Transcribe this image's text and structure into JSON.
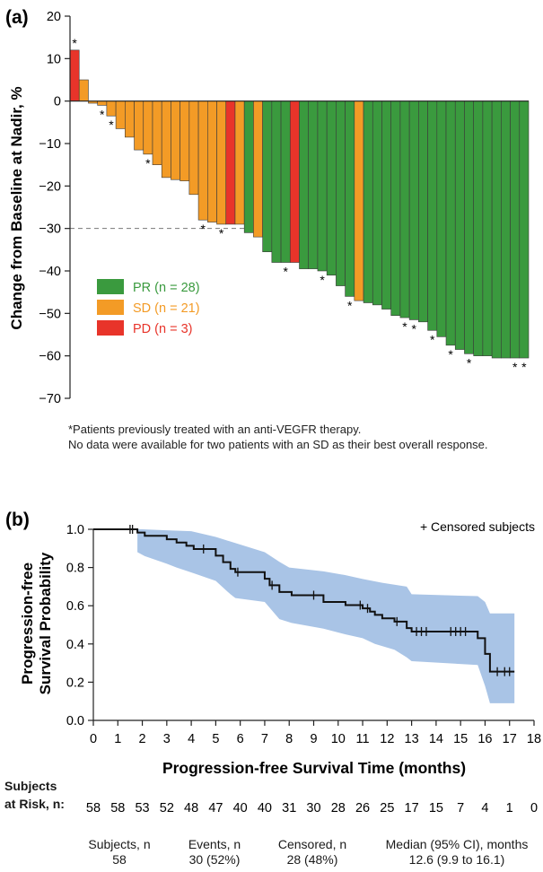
{
  "colors": {
    "PR": "#3a9a3e",
    "SD": "#f39b26",
    "PD": "#e8342a",
    "km_line": "#111111",
    "ci_band": "#a9c4e6",
    "reference_line": "#777777"
  },
  "chart_data": [
    {
      "type": "bar",
      "panel_label": "(a)",
      "ylabel": "Change from Baseline at Nadir, %",
      "ylim": [
        -70,
        20
      ],
      "yticks": [
        "20",
        "10",
        "0",
        "−10",
        "−20",
        "−30",
        "−40",
        "−50",
        "−60",
        "−70"
      ],
      "yticks_values": [
        20,
        10,
        0,
        -10,
        -20,
        -30,
        -40,
        -50,
        -60,
        -70
      ],
      "reference_line": -30,
      "legend_placement": "lower-left",
      "legend": [
        {
          "key": "PR",
          "label": "PR (n = 28)"
        },
        {
          "key": "SD",
          "label": "SD (n = 21)"
        },
        {
          "key": "PD",
          "label": "PD (n = 3)"
        }
      ],
      "series": [
        {
          "name": "PR",
          "values": []
        },
        {
          "name": "SD",
          "values": []
        },
        {
          "name": "PD",
          "values": []
        }
      ],
      "bars": [
        {
          "value": 12,
          "status": "PD",
          "marker": "*"
        },
        {
          "value": 5,
          "status": "SD",
          "marker": ""
        },
        {
          "value": -0.5,
          "status": "SD",
          "marker": ""
        },
        {
          "value": -1,
          "status": "SD",
          "marker": "*"
        },
        {
          "value": -3.5,
          "status": "SD",
          "marker": "*"
        },
        {
          "value": -6.5,
          "status": "SD",
          "marker": ""
        },
        {
          "value": -8.5,
          "status": "SD",
          "marker": ""
        },
        {
          "value": -11.5,
          "status": "SD",
          "marker": ""
        },
        {
          "value": -12.5,
          "status": "SD",
          "marker": "*"
        },
        {
          "value": -15,
          "status": "SD",
          "marker": ""
        },
        {
          "value": -18,
          "status": "SD",
          "marker": ""
        },
        {
          "value": -18.5,
          "status": "SD",
          "marker": ""
        },
        {
          "value": -18.8,
          "status": "SD",
          "marker": ""
        },
        {
          "value": -22,
          "status": "SD",
          "marker": ""
        },
        {
          "value": -28,
          "status": "SD",
          "marker": "*"
        },
        {
          "value": -28.5,
          "status": "SD",
          "marker": ""
        },
        {
          "value": -29,
          "status": "SD",
          "marker": "*"
        },
        {
          "value": -29,
          "status": "PD",
          "marker": ""
        },
        {
          "value": -29,
          "status": "SD",
          "marker": ""
        },
        {
          "value": -31,
          "status": "PR",
          "marker": ""
        },
        {
          "value": -32,
          "status": "SD",
          "marker": ""
        },
        {
          "value": -35.5,
          "status": "PR",
          "marker": ""
        },
        {
          "value": -38,
          "status": "PR",
          "marker": ""
        },
        {
          "value": -38,
          "status": "PR",
          "marker": "*"
        },
        {
          "value": -38,
          "status": "PD",
          "marker": ""
        },
        {
          "value": -39.5,
          "status": "PR",
          "marker": ""
        },
        {
          "value": -39.5,
          "status": "PR",
          "marker": ""
        },
        {
          "value": -40,
          "status": "PR",
          "marker": "*"
        },
        {
          "value": -41,
          "status": "PR",
          "marker": ""
        },
        {
          "value": -43.5,
          "status": "PR",
          "marker": ""
        },
        {
          "value": -46,
          "status": "PR",
          "marker": "*"
        },
        {
          "value": -47,
          "status": "SD",
          "marker": ""
        },
        {
          "value": -47.5,
          "status": "PR",
          "marker": ""
        },
        {
          "value": -48,
          "status": "PR",
          "marker": ""
        },
        {
          "value": -49,
          "status": "PR",
          "marker": ""
        },
        {
          "value": -50.5,
          "status": "PR",
          "marker": ""
        },
        {
          "value": -51,
          "status": "PR",
          "marker": "*"
        },
        {
          "value": -51.5,
          "status": "PR",
          "marker": "*"
        },
        {
          "value": -52,
          "status": "PR",
          "marker": ""
        },
        {
          "value": -54,
          "status": "PR",
          "marker": "*"
        },
        {
          "value": -55.5,
          "status": "PR",
          "marker": ""
        },
        {
          "value": -57.5,
          "status": "PR",
          "marker": "*"
        },
        {
          "value": -58.5,
          "status": "PR",
          "marker": ""
        },
        {
          "value": -59.5,
          "status": "PR",
          "marker": "*"
        },
        {
          "value": -60,
          "status": "PR",
          "marker": ""
        },
        {
          "value": -60,
          "status": "PR",
          "marker": ""
        },
        {
          "value": -60.5,
          "status": "PR",
          "marker": ""
        },
        {
          "value": -60.5,
          "status": "PR",
          "marker": ""
        },
        {
          "value": -60.5,
          "status": "PR",
          "marker": "*"
        },
        {
          "value": -60.5,
          "status": "PR",
          "marker": "*"
        }
      ]
    },
    {
      "type": "line",
      "panel_label": "(b)",
      "ylabel_line1": "Progression-free",
      "ylabel_line2": "Survival Probability",
      "xlabel": "Progression-free Survival Time (months)",
      "xlim": [
        0,
        18
      ],
      "ylim": [
        0,
        1
      ],
      "xticks": [
        "0",
        "1",
        "2",
        "3",
        "4",
        "5",
        "6",
        "7",
        "8",
        "9",
        "10",
        "11",
        "12",
        "13",
        "14",
        "15",
        "16",
        "17",
        "18"
      ],
      "xticks_values": [
        0,
        1,
        2,
        3,
        4,
        5,
        6,
        7,
        8,
        9,
        10,
        11,
        12,
        13,
        14,
        15,
        16,
        17,
        18
      ],
      "yticks": [
        "0.0",
        "0.2",
        "0.4",
        "0.6",
        "0.8",
        "1.0"
      ],
      "yticks_values": [
        0,
        0.2,
        0.4,
        0.6,
        0.8,
        1.0
      ],
      "legend_text": "+ Censored subjects",
      "legend_placement": "top-right",
      "km_steps": [
        [
          0,
          1.0
        ],
        [
          1.8,
          1.0
        ],
        [
          1.8,
          0.983
        ],
        [
          2.1,
          0.983
        ],
        [
          2.1,
          0.966
        ],
        [
          3.0,
          0.966
        ],
        [
          3.0,
          0.948
        ],
        [
          3.4,
          0.948
        ],
        [
          3.4,
          0.931
        ],
        [
          3.8,
          0.931
        ],
        [
          3.8,
          0.914
        ],
        [
          4.1,
          0.914
        ],
        [
          4.1,
          0.897
        ],
        [
          5.0,
          0.897
        ],
        [
          5.0,
          0.862
        ],
        [
          5.3,
          0.862
        ],
        [
          5.3,
          0.828
        ],
        [
          5.6,
          0.828
        ],
        [
          5.6,
          0.793
        ],
        [
          5.8,
          0.793
        ],
        [
          5.8,
          0.776
        ],
        [
          7.0,
          0.776
        ],
        [
          7.0,
          0.741
        ],
        [
          7.2,
          0.741
        ],
        [
          7.2,
          0.707
        ],
        [
          7.6,
          0.707
        ],
        [
          7.6,
          0.672
        ],
        [
          8.1,
          0.672
        ],
        [
          8.1,
          0.655
        ],
        [
          9.4,
          0.655
        ],
        [
          9.4,
          0.62
        ],
        [
          10.3,
          0.62
        ],
        [
          10.3,
          0.603
        ],
        [
          11.0,
          0.603
        ],
        [
          11.0,
          0.586
        ],
        [
          11.3,
          0.586
        ],
        [
          11.3,
          0.569
        ],
        [
          11.5,
          0.569
        ],
        [
          11.5,
          0.552
        ],
        [
          11.8,
          0.552
        ],
        [
          11.8,
          0.534
        ],
        [
          12.3,
          0.534
        ],
        [
          12.3,
          0.517
        ],
        [
          12.8,
          0.517
        ],
        [
          12.8,
          0.483
        ],
        [
          13.0,
          0.483
        ],
        [
          13.0,
          0.465
        ],
        [
          15.7,
          0.465
        ],
        [
          15.7,
          0.43
        ],
        [
          16.0,
          0.43
        ],
        [
          16.0,
          0.348
        ],
        [
          16.2,
          0.348
        ],
        [
          16.2,
          0.255
        ],
        [
          17.2,
          0.255
        ]
      ],
      "ci_upper": [
        [
          0,
          1.0
        ],
        [
          1.8,
          1.0
        ],
        [
          2.0,
          1.0
        ],
        [
          3.0,
          0.995
        ],
        [
          4.0,
          0.99
        ],
        [
          5.0,
          0.96
        ],
        [
          6.0,
          0.92
        ],
        [
          7.0,
          0.88
        ],
        [
          7.6,
          0.83
        ],
        [
          8.0,
          0.8
        ],
        [
          9.4,
          0.78
        ],
        [
          10.3,
          0.76
        ],
        [
          11.0,
          0.74
        ],
        [
          11.8,
          0.72
        ],
        [
          12.8,
          0.7
        ],
        [
          13.0,
          0.66
        ],
        [
          15.7,
          0.65
        ],
        [
          16.0,
          0.62
        ],
        [
          16.2,
          0.56
        ],
        [
          17.2,
          0.56
        ]
      ],
      "ci_lower": [
        [
          0,
          1.0
        ],
        [
          1.8,
          1.0
        ],
        [
          1.8,
          0.88
        ],
        [
          2.1,
          0.86
        ],
        [
          3.0,
          0.82
        ],
        [
          3.4,
          0.8
        ],
        [
          4.1,
          0.77
        ],
        [
          5.0,
          0.73
        ],
        [
          5.6,
          0.66
        ],
        [
          5.8,
          0.64
        ],
        [
          7.0,
          0.62
        ],
        [
          7.6,
          0.53
        ],
        [
          8.1,
          0.51
        ],
        [
          9.4,
          0.48
        ],
        [
          10.3,
          0.45
        ],
        [
          11.0,
          0.43
        ],
        [
          11.5,
          0.4
        ],
        [
          12.3,
          0.37
        ],
        [
          12.8,
          0.33
        ],
        [
          13.0,
          0.31
        ],
        [
          15.7,
          0.29
        ],
        [
          16.0,
          0.18
        ],
        [
          16.2,
          0.09
        ],
        [
          17.2,
          0.09
        ]
      ],
      "censored_times": [
        1.5,
        1.6,
        4.5,
        5.9,
        7.3,
        9.0,
        10.9,
        11.2,
        12.4,
        13.2,
        13.4,
        13.6,
        14.6,
        14.8,
        15.0,
        15.2,
        16.5,
        16.8,
        17.0
      ],
      "risk_table": {
        "label_line1": "Subjects",
        "label_line2": "at Risk, n:",
        "counts": [
          "58",
          "58",
          "53",
          "52",
          "48",
          "47",
          "40",
          "40",
          "31",
          "30",
          "28",
          "26",
          "25",
          "17",
          "15",
          "7",
          "4",
          "1",
          "0"
        ]
      },
      "summary": {
        "subjects_label": "Subjects, n",
        "subjects_value": "58",
        "events_label": "Events, n",
        "events_value": "30 (52%)",
        "censored_label": "Censored, n",
        "censored_value": "28 (48%)",
        "median_label": "Median (95% CI), months",
        "median_value": "12.6 (9.9 to 16.1)"
      }
    }
  ],
  "footnote": {
    "line1": "*Patients previously treated with an anti-VEGFR therapy.",
    "line2": "No data were available for two patients with an SD as their best overall response."
  }
}
